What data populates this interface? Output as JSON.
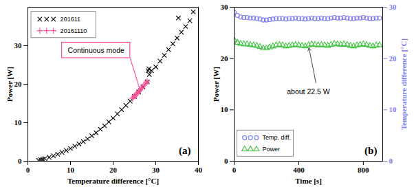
{
  "chart_data": [
    {
      "type": "scatter",
      "title": "(a)",
      "xlabel": "Temperature difference [°C]",
      "ylabel": "Power [W]",
      "xlim": [
        0,
        40
      ],
      "ylim": [
        0,
        40
      ],
      "xticks": [
        0,
        10,
        20,
        30,
        40
      ],
      "yticks": [
        0,
        10,
        20,
        30
      ],
      "grid": false,
      "legend": "upper left",
      "series": [
        {
          "name": "201611",
          "color": "#000000",
          "marker": "x",
          "x": [
            2.5,
            3,
            3.5,
            4,
            5,
            6,
            7,
            8,
            9,
            10,
            11,
            12,
            13,
            14,
            15,
            16,
            17,
            18,
            19,
            20,
            21,
            22,
            23,
            24,
            25,
            26,
            27,
            28,
            28.2,
            28.4,
            28.5,
            29,
            30,
            31,
            32,
            33,
            34,
            35,
            35.3,
            36,
            37,
            38,
            38.8
          ],
          "values": [
            0.2,
            0.4,
            0.5,
            0.7,
            1.0,
            1.4,
            1.8,
            2.3,
            2.8,
            3.3,
            3.9,
            4.5,
            5.1,
            5.8,
            6.6,
            7.4,
            8.3,
            9.2,
            10.2,
            11.2,
            12.3,
            13.4,
            14.5,
            15.6,
            16.8,
            18.0,
            19.3,
            20.6,
            23.5,
            24.0,
            22.5,
            23.5,
            24.5,
            26.0,
            27.5,
            29.0,
            30.5,
            32.0,
            37.2,
            33.5,
            35.0,
            36.5,
            38.8
          ]
        },
        {
          "name": "20161110",
          "color": "#ff4f9a",
          "marker": "+",
          "x": [
            24.5,
            24.8,
            25.0,
            25.2,
            25.5,
            25.8,
            26.0,
            26.3,
            26.6,
            26.9,
            27.2,
            27.5,
            27.8,
            28.0
          ],
          "values": [
            16.3,
            16.6,
            16.9,
            17.1,
            17.5,
            17.8,
            18.1,
            18.5,
            18.9,
            19.3,
            19.7,
            20.1,
            20.5,
            20.8
          ]
        }
      ],
      "annotations": [
        {
          "text": "Continuous mode",
          "series": "20161110"
        }
      ]
    },
    {
      "type": "scatter",
      "title": "(b)",
      "xlabel": "Time [s]",
      "ylabel": "Power [W]",
      "y2label": "Temperature difference [°C]",
      "xlim": [
        0,
        920
      ],
      "ylim": [
        0,
        30
      ],
      "y2lim": [
        0,
        30
      ],
      "xticks": [
        0,
        400,
        800
      ],
      "yticks": [
        0,
        10,
        20,
        30
      ],
      "y2ticks": [
        0,
        10,
        20,
        30
      ],
      "grid": false,
      "legend": "lower left",
      "x": [
        0,
        20,
        40,
        60,
        80,
        100,
        120,
        140,
        160,
        180,
        200,
        220,
        240,
        260,
        280,
        300,
        320,
        340,
        360,
        380,
        400,
        420,
        440,
        460,
        480,
        500,
        520,
        540,
        560,
        580,
        600,
        620,
        640,
        660,
        680,
        700,
        720,
        740,
        760,
        780,
        800,
        820,
        840,
        860,
        880,
        900
      ],
      "series": [
        {
          "name": "Temp. diff.",
          "color": "#7c7cf0",
          "marker": "o",
          "axis": "y2",
          "values": [
            29.0,
            28.4,
            28.1,
            28.0,
            28.0,
            27.9,
            27.9,
            27.8,
            27.7,
            27.5,
            27.5,
            27.6,
            27.7,
            27.8,
            27.8,
            27.8,
            27.7,
            27.8,
            27.8,
            27.9,
            27.8,
            27.8,
            27.7,
            27.8,
            27.9,
            27.8,
            27.8,
            27.9,
            27.8,
            27.8,
            27.9,
            28.0,
            27.9,
            27.9,
            28.0,
            27.9,
            27.8,
            27.8,
            27.9,
            27.9,
            28.0,
            27.9,
            27.8,
            27.8,
            27.9,
            27.9
          ]
        },
        {
          "name": "Power",
          "color": "#3cc43c",
          "marker": "^",
          "values": [
            23.6,
            23.1,
            22.9,
            22.8,
            22.8,
            22.7,
            22.6,
            22.5,
            22.3,
            22.0,
            22.0,
            22.2,
            22.4,
            22.6,
            22.7,
            22.6,
            22.4,
            22.5,
            22.6,
            22.7,
            22.6,
            22.5,
            22.4,
            22.6,
            22.8,
            22.7,
            22.6,
            22.7,
            22.6,
            22.5,
            22.7,
            22.9,
            22.8,
            22.7,
            22.8,
            22.7,
            22.5,
            22.4,
            22.6,
            22.7,
            22.8,
            22.7,
            22.5,
            22.4,
            22.6,
            22.6
          ]
        }
      ],
      "annotations": [
        {
          "text": "about 22.5 W",
          "series": "Power"
        }
      ]
    }
  ]
}
